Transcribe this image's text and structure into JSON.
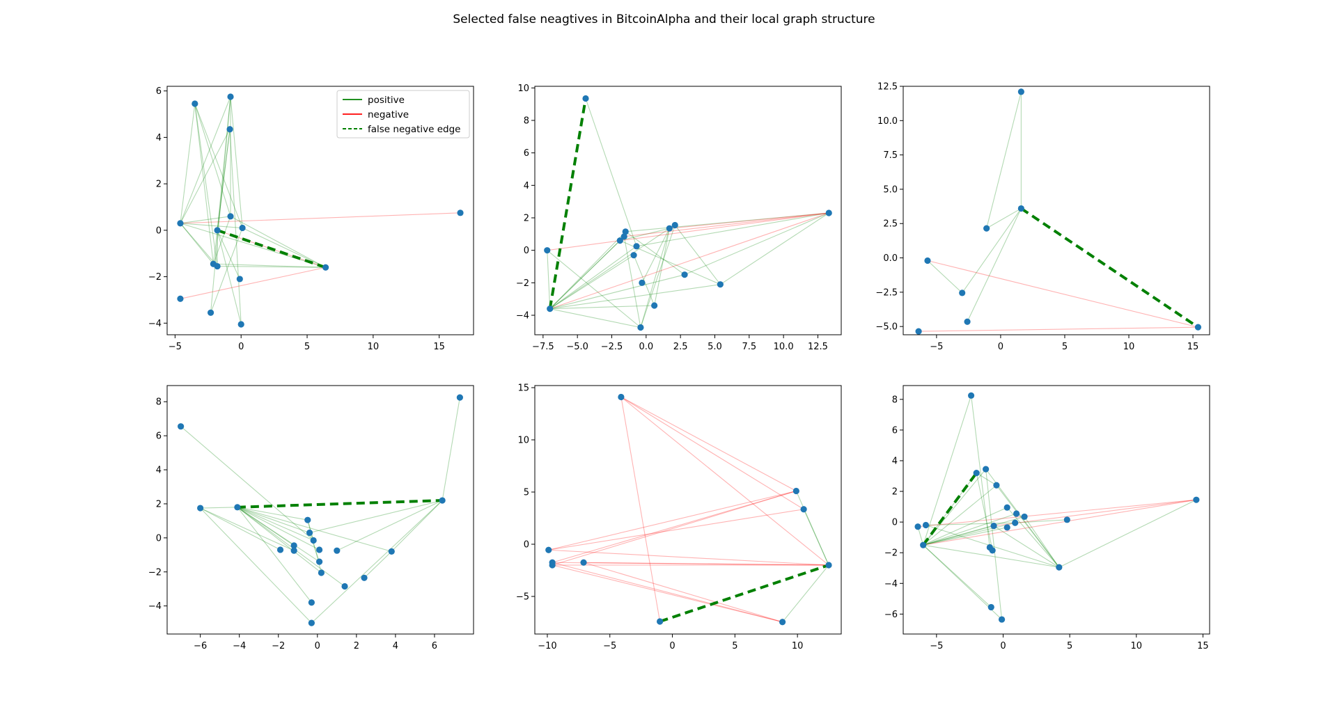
{
  "title": "Selected false neagtives in BitcoinAlpha and their local graph structure",
  "legend": {
    "entries": [
      {
        "label": "positive",
        "color": "#008000",
        "style": "solid"
      },
      {
        "label": "negative",
        "color": "#ff0000",
        "style": "solid"
      },
      {
        "label": "false negative edge",
        "color": "#008000",
        "style": "dashed"
      }
    ],
    "placement": "upper-right of first subplot"
  },
  "colors": {
    "node": "#1f77b4",
    "positive": "#008000",
    "negative": "#ff0000",
    "false_negative": "#008000"
  },
  "chart_data": [
    {
      "type": "scatter",
      "xlim": [
        -5.6,
        17.6
      ],
      "ylim": [
        -4.5,
        6.2
      ],
      "xticks": [
        -5,
        0,
        5,
        10,
        15
      ],
      "yticks": [
        -4,
        -2,
        0,
        2,
        4,
        6
      ],
      "nodes": [
        [
          -4.6,
          0.3
        ],
        [
          -3.5,
          5.45
        ],
        [
          -0.8,
          5.75
        ],
        [
          -0.85,
          4.35
        ],
        [
          -0.8,
          0.6
        ],
        [
          0.1,
          0.1
        ],
        [
          -1.8,
          0.0
        ],
        [
          -2.1,
          -1.45
        ],
        [
          -1.8,
          -1.55
        ],
        [
          6.4,
          -1.6
        ],
        [
          -0.1,
          -2.1
        ],
        [
          -4.6,
          -2.95
        ],
        [
          -2.3,
          -3.55
        ],
        [
          0.0,
          -4.05
        ],
        [
          16.6,
          0.75
        ]
      ],
      "positive_edges": [
        [
          0,
          1
        ],
        [
          0,
          2
        ],
        [
          0,
          3
        ],
        [
          0,
          4
        ],
        [
          0,
          5
        ],
        [
          0,
          9
        ],
        [
          0,
          7
        ],
        [
          0,
          8
        ],
        [
          1,
          7
        ],
        [
          1,
          8
        ],
        [
          1,
          5
        ],
        [
          1,
          4
        ],
        [
          2,
          6
        ],
        [
          2,
          12
        ],
        [
          2,
          5
        ],
        [
          3,
          7
        ],
        [
          3,
          13
        ],
        [
          3,
          6
        ],
        [
          4,
          9
        ],
        [
          4,
          7
        ],
        [
          5,
          9
        ],
        [
          5,
          12
        ],
        [
          6,
          8
        ],
        [
          6,
          10
        ],
        [
          7,
          9
        ],
        [
          8,
          9
        ],
        [
          6,
          13
        ],
        [
          2,
          4
        ]
      ],
      "negative_edges": [
        [
          0,
          14
        ],
        [
          11,
          9
        ],
        [
          6,
          9
        ]
      ],
      "false_negative_edges": [
        [
          6,
          9
        ]
      ]
    },
    {
      "type": "scatter",
      "xlim": [
        -8.1,
        14.2
      ],
      "ylim": [
        -5.2,
        10.1
      ],
      "xticks": [
        -7.5,
        -5.0,
        -2.5,
        0.0,
        2.5,
        5.0,
        7.5,
        10.0,
        12.5
      ],
      "xtick_labels": [
        "−7.5",
        "−5.0",
        "−2.5",
        "0.0",
        "2.5",
        "5.0",
        "7.5",
        "10.0",
        "12.5"
      ],
      "yticks": [
        -4,
        -2,
        0,
        2,
        4,
        6,
        8,
        10
      ],
      "nodes": [
        [
          -4.4,
          9.35
        ],
        [
          -7.0,
          -3.6
        ],
        [
          -7.2,
          0.0
        ],
        [
          -1.9,
          0.6
        ],
        [
          -1.6,
          0.85
        ],
        [
          -1.5,
          1.15
        ],
        [
          -0.7,
          0.25
        ],
        [
          -0.9,
          -0.3
        ],
        [
          -0.3,
          -2.0
        ],
        [
          1.7,
          1.35
        ],
        [
          2.1,
          1.55
        ],
        [
          2.8,
          -1.5
        ],
        [
          5.4,
          -2.1
        ],
        [
          0.6,
          -3.4
        ],
        [
          -0.4,
          -4.75
        ],
        [
          13.3,
          2.3
        ]
      ],
      "positive_edges": [
        [
          1,
          3
        ],
        [
          1,
          4
        ],
        [
          1,
          5
        ],
        [
          1,
          6
        ],
        [
          1,
          7
        ],
        [
          1,
          9
        ],
        [
          1,
          11
        ],
        [
          1,
          12
        ],
        [
          1,
          13
        ],
        [
          1,
          14
        ],
        [
          2,
          1
        ],
        [
          0,
          6
        ],
        [
          3,
          12
        ],
        [
          4,
          14
        ],
        [
          5,
          11
        ],
        [
          6,
          15
        ],
        [
          7,
          13
        ],
        [
          8,
          9
        ],
        [
          9,
          14
        ],
        [
          10,
          12
        ],
        [
          11,
          15
        ],
        [
          12,
          15
        ],
        [
          13,
          9
        ],
        [
          14,
          10
        ],
        [
          3,
          9
        ],
        [
          5,
          15
        ],
        [
          2,
          14
        ]
      ],
      "negative_edges": [
        [
          2,
          15
        ],
        [
          1,
          15
        ],
        [
          4,
          15
        ],
        [
          9,
          15
        ]
      ],
      "false_negative_edges": [
        [
          1,
          0
        ]
      ]
    },
    {
      "type": "scatter",
      "xlim": [
        -7.6,
        16.3
      ],
      "ylim": [
        -5.6,
        12.5
      ],
      "xticks": [
        -5,
        0,
        5,
        10,
        15
      ],
      "yticks": [
        -5.0,
        -2.5,
        0.0,
        2.5,
        5.0,
        7.5,
        10.0,
        12.5
      ],
      "ytick_labels": [
        "−5.0",
        "−2.5",
        "0.0",
        "2.5",
        "5.0",
        "7.5",
        "10.0",
        "12.5"
      ],
      "nodes": [
        [
          1.6,
          12.1
        ],
        [
          1.6,
          3.6
        ],
        [
          -1.1,
          2.15
        ],
        [
          -5.7,
          -0.2
        ],
        [
          -3.0,
          -2.55
        ],
        [
          -2.6,
          -4.65
        ],
        [
          -6.4,
          -5.35
        ],
        [
          15.4,
          -5.05
        ]
      ],
      "positive_edges": [
        [
          0,
          1
        ],
        [
          0,
          2
        ],
        [
          1,
          2
        ],
        [
          1,
          4
        ],
        [
          1,
          5
        ],
        [
          3,
          4
        ]
      ],
      "negative_edges": [
        [
          3,
          7
        ],
        [
          6,
          7
        ]
      ],
      "false_negative_edges": [
        [
          1,
          7
        ]
      ]
    },
    {
      "type": "scatter",
      "xlim": [
        -7.7,
        8.0
      ],
      "ylim": [
        -5.65,
        8.95
      ],
      "xticks": [
        -6,
        -4,
        -2,
        0,
        2,
        4,
        6
      ],
      "yticks": [
        -4,
        -2,
        0,
        2,
        4,
        6,
        8
      ],
      "nodes": [
        [
          -7.0,
          6.55
        ],
        [
          -6.0,
          1.75
        ],
        [
          -4.1,
          1.8
        ],
        [
          6.4,
          2.2
        ],
        [
          7.3,
          8.25
        ],
        [
          -0.5,
          1.05
        ],
        [
          -0.4,
          0.3
        ],
        [
          -0.2,
          -0.15
        ],
        [
          0.1,
          -0.7
        ],
        [
          1.0,
          -0.75
        ],
        [
          -1.2,
          -0.45
        ],
        [
          -1.2,
          -0.75
        ],
        [
          -1.9,
          -0.7
        ],
        [
          0.1,
          -1.4
        ],
        [
          0.2,
          -2.05
        ],
        [
          1.4,
          -2.85
        ],
        [
          2.4,
          -2.35
        ],
        [
          3.8,
          -0.8
        ],
        [
          -0.3,
          -3.8
        ],
        [
          -0.3,
          -5.0
        ]
      ],
      "positive_edges": [
        [
          0,
          7
        ],
        [
          1,
          2
        ],
        [
          1,
          12
        ],
        [
          1,
          11
        ],
        [
          1,
          19
        ],
        [
          2,
          5
        ],
        [
          2,
          6
        ],
        [
          2,
          7
        ],
        [
          2,
          8
        ],
        [
          2,
          10
        ],
        [
          2,
          13
        ],
        [
          2,
          14
        ],
        [
          2,
          15
        ],
        [
          2,
          18
        ],
        [
          3,
          4
        ],
        [
          3,
          6
        ],
        [
          3,
          9
        ],
        [
          3,
          17
        ],
        [
          3,
          19
        ],
        [
          5,
          14
        ],
        [
          17,
          16
        ],
        [
          2,
          17
        ],
        [
          5,
          7
        ],
        [
          6,
          13
        ]
      ],
      "negative_edges": [],
      "false_negative_edges": [
        [
          2,
          3
        ]
      ]
    },
    {
      "type": "scatter",
      "xlim": [
        -11.0,
        13.5
      ],
      "ylim": [
        -8.6,
        15.2
      ],
      "xticks": [
        -10,
        -5,
        0,
        5,
        10
      ],
      "yticks": [
        -5,
        0,
        5,
        10,
        15
      ],
      "nodes": [
        [
          -4.1,
          14.1
        ],
        [
          9.9,
          5.1
        ],
        [
          10.5,
          3.35
        ],
        [
          12.5,
          -2.0
        ],
        [
          -9.9,
          -0.55
        ],
        [
          -9.6,
          -1.75
        ],
        [
          -9.6,
          -2.0
        ],
        [
          -7.1,
          -1.75
        ],
        [
          -1.0,
          -7.4
        ],
        [
          8.8,
          -7.45
        ]
      ],
      "positive_edges": [
        [
          1,
          3
        ],
        [
          2,
          3
        ],
        [
          3,
          9
        ]
      ],
      "negative_edges": [
        [
          0,
          1
        ],
        [
          0,
          2
        ],
        [
          0,
          3
        ],
        [
          0,
          8
        ],
        [
          4,
          3
        ],
        [
          4,
          2
        ],
        [
          5,
          3
        ],
        [
          5,
          1
        ],
        [
          6,
          1
        ],
        [
          6,
          3
        ],
        [
          6,
          9
        ],
        [
          7,
          3
        ],
        [
          7,
          9
        ],
        [
          5,
          9
        ],
        [
          4,
          1
        ]
      ],
      "false_negative_edges": [
        [
          8,
          3
        ]
      ]
    },
    {
      "type": "scatter",
      "xlim": [
        -7.5,
        15.5
      ],
      "ylim": [
        -7.3,
        8.9
      ],
      "xticks": [
        -5,
        0,
        5,
        10,
        15
      ],
      "yticks": [
        -6,
        -4,
        -2,
        0,
        2,
        4,
        6,
        8
      ],
      "nodes": [
        [
          -2.4,
          8.25
        ],
        [
          -2.0,
          3.2
        ],
        [
          -1.3,
          3.45
        ],
        [
          -0.5,
          2.4
        ],
        [
          -6.4,
          -0.3
        ],
        [
          -5.8,
          -0.2
        ],
        [
          -6.0,
          -1.5
        ],
        [
          0.3,
          0.95
        ],
        [
          1.0,
          0.55
        ],
        [
          1.6,
          0.35
        ],
        [
          0.9,
          -0.05
        ],
        [
          0.3,
          -0.35
        ],
        [
          -0.7,
          -0.25
        ],
        [
          -1.0,
          -1.65
        ],
        [
          -0.8,
          -1.85
        ],
        [
          4.2,
          -2.95
        ],
        [
          4.8,
          0.15
        ],
        [
          -0.9,
          -5.55
        ],
        [
          -0.1,
          -6.35
        ],
        [
          14.5,
          1.45
        ]
      ],
      "positive_edges": [
        [
          0,
          6
        ],
        [
          0,
          13
        ],
        [
          1,
          6
        ],
        [
          1,
          14
        ],
        [
          2,
          6
        ],
        [
          2,
          15
        ],
        [
          3,
          6
        ],
        [
          3,
          15
        ],
        [
          4,
          6
        ],
        [
          5,
          15
        ],
        [
          6,
          7
        ],
        [
          6,
          8
        ],
        [
          6,
          9
        ],
        [
          6,
          10
        ],
        [
          6,
          11
        ],
        [
          6,
          12
        ],
        [
          6,
          15
        ],
        [
          6,
          17
        ],
        [
          6,
          18
        ],
        [
          7,
          15
        ],
        [
          12,
          15
        ],
        [
          15,
          19
        ],
        [
          9,
          15
        ],
        [
          10,
          16
        ],
        [
          2,
          18
        ],
        [
          5,
          10
        ],
        [
          1,
          3
        ]
      ],
      "negative_edges": [
        [
          4,
          19
        ],
        [
          6,
          19
        ],
        [
          12,
          19
        ]
      ],
      "false_negative_edges": [
        [
          6,
          1
        ]
      ]
    }
  ]
}
